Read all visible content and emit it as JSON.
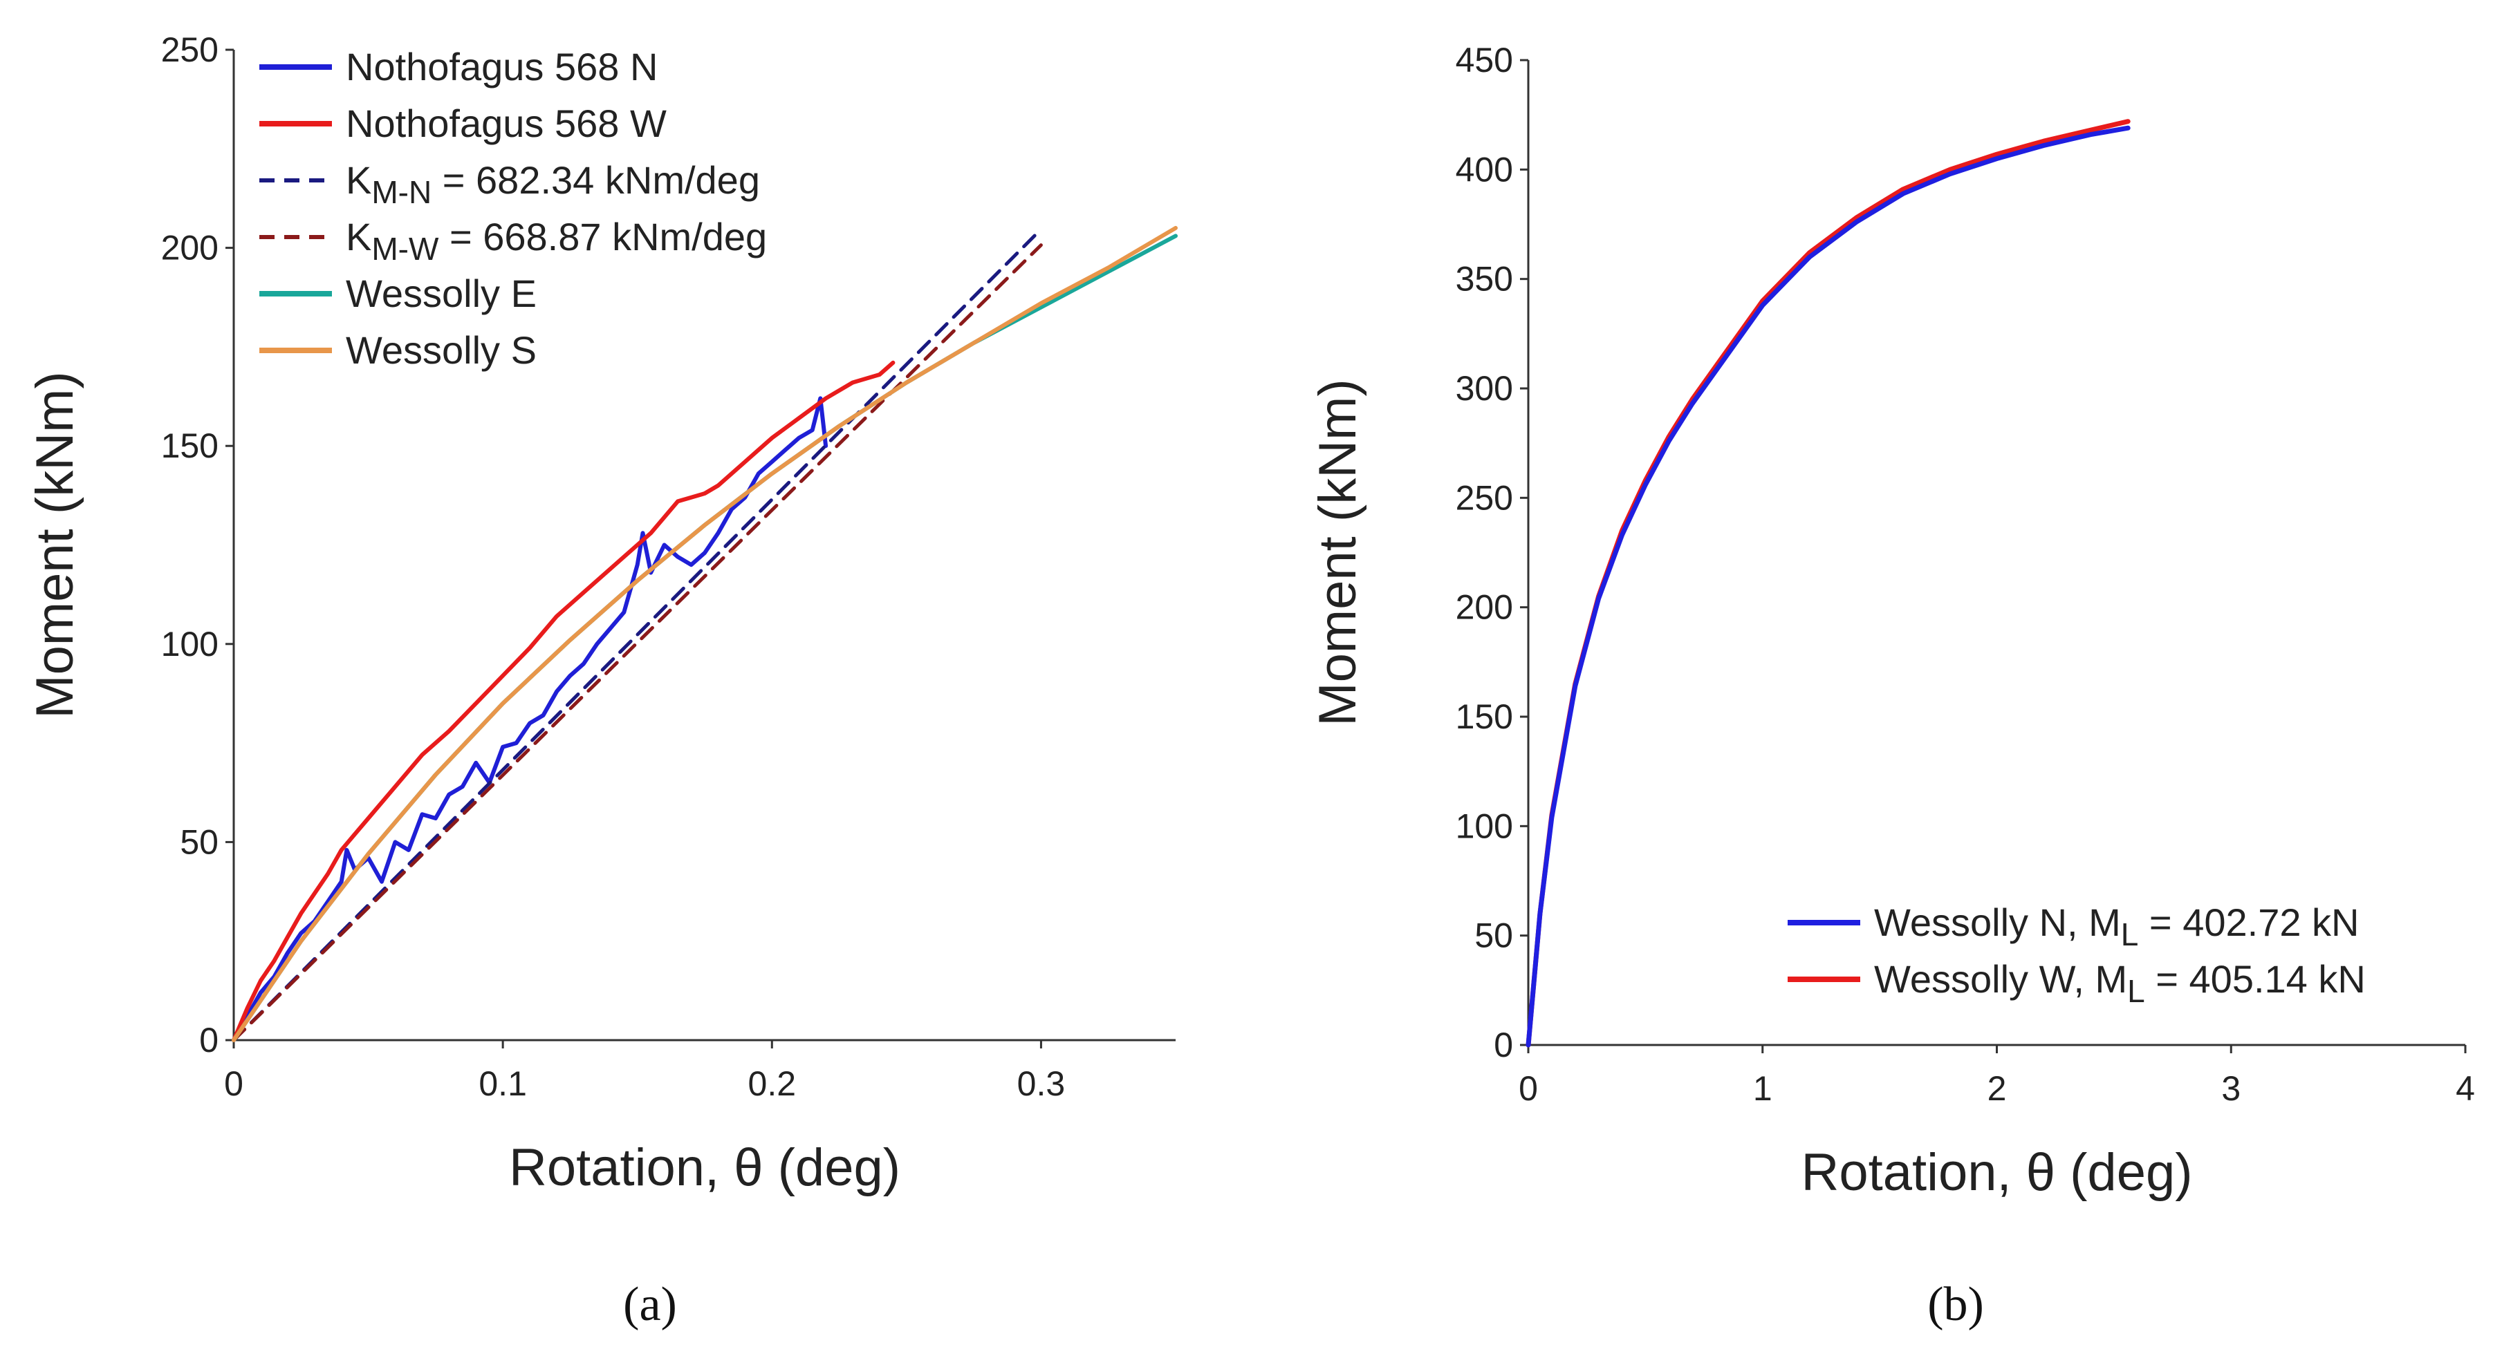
{
  "chart_data": [
    {
      "panel_label": "(a)",
      "type": "line",
      "xlabel": "Rotation, θ (deg)",
      "ylabel": "Moment (kNm)",
      "xlim": [
        0,
        0.35
      ],
      "ylim": [
        0,
        250
      ],
      "xticks": [
        0,
        0.1,
        0.2,
        0.3
      ],
      "xtick_labels": [
        "0",
        "0.1",
        "0.2",
        "0.3"
      ],
      "yticks": [
        0,
        50,
        100,
        150,
        200,
        250
      ],
      "ytick_labels": [
        "0",
        "50",
        "100",
        "150",
        "200",
        "250"
      ],
      "legend_position": "top-left",
      "series": [
        {
          "name": "Nothofagus 568 N",
          "legend_label": "Nothofagus 568 N",
          "color": "#1f1fd6",
          "style": "solid",
          "x": [
            0,
            0.005,
            0.01,
            0.015,
            0.02,
            0.025,
            0.03,
            0.035,
            0.04,
            0.042,
            0.045,
            0.05,
            0.055,
            0.06,
            0.065,
            0.07,
            0.075,
            0.08,
            0.085,
            0.09,
            0.095,
            0.1,
            0.105,
            0.11,
            0.115,
            0.12,
            0.125,
            0.13,
            0.135,
            0.14,
            0.145,
            0.15,
            0.152,
            0.155,
            0.16,
            0.165,
            0.17,
            0.175,
            0.18,
            0.185,
            0.19,
            0.195,
            0.2,
            0.205,
            0.21,
            0.215,
            0.218,
            0.22
          ],
          "y": [
            0,
            6,
            12,
            16,
            22,
            27,
            30,
            35,
            40,
            48,
            43,
            46,
            40,
            50,
            48,
            57,
            56,
            62,
            64,
            70,
            65,
            74,
            75,
            80,
            82,
            88,
            92,
            95,
            100,
            104,
            108,
            120,
            128,
            118,
            125,
            122,
            120,
            123,
            128,
            134,
            137,
            143,
            146,
            149,
            152,
            154,
            162,
            150
          ]
        },
        {
          "name": "Nothofagus 568 W",
          "legend_label": "Nothofagus 568 W",
          "color": "#e81c1c",
          "style": "solid",
          "x": [
            0,
            0.005,
            0.01,
            0.015,
            0.02,
            0.025,
            0.03,
            0.035,
            0.04,
            0.045,
            0.05,
            0.06,
            0.07,
            0.08,
            0.09,
            0.1,
            0.11,
            0.12,
            0.13,
            0.14,
            0.15,
            0.155,
            0.16,
            0.165,
            0.17,
            0.175,
            0.18,
            0.19,
            0.2,
            0.21,
            0.22,
            0.23,
            0.24,
            0.245
          ],
          "y": [
            0,
            8,
            15,
            20,
            26,
            32,
            37,
            42,
            48,
            52,
            56,
            64,
            72,
            78,
            85,
            92,
            99,
            107,
            113,
            119,
            125,
            128,
            132,
            136,
            137,
            138,
            140,
            146,
            152,
            157,
            162,
            166,
            168,
            171
          ]
        },
        {
          "name": "K_M-N",
          "legend_label": "K",
          "legend_subscript": "M-N",
          "legend_rest": " = 682.34 kNm/deg",
          "color": "#1a1a80",
          "style": "dashed",
          "x": [
            0,
            0.3
          ],
          "y": [
            0,
            204.7
          ]
        },
        {
          "name": "K_M-W",
          "legend_label": "K",
          "legend_subscript": "M-W",
          "legend_rest": " = 668.87 kNm/deg",
          "color": "#8b1a1a",
          "style": "dashed",
          "x": [
            0,
            0.3
          ],
          "y": [
            0,
            200.7
          ]
        },
        {
          "name": "Wessolly E",
          "legend_label": "Wessolly E",
          "color": "#1aa79a",
          "style": "solid",
          "x": [
            0,
            0.025,
            0.05,
            0.075,
            0.1,
            0.125,
            0.15,
            0.175,
            0.2,
            0.225,
            0.25,
            0.275,
            0.3,
            0.325,
            0.35
          ],
          "y": [
            0,
            25,
            47,
            67,
            85,
            101,
            116,
            130,
            143,
            155,
            166,
            176,
            185,
            194,
            203
          ]
        },
        {
          "name": "Wessolly S",
          "legend_label": "Wessolly S",
          "color": "#e8964a",
          "style": "solid",
          "x": [
            0,
            0.025,
            0.05,
            0.075,
            0.1,
            0.125,
            0.15,
            0.175,
            0.2,
            0.225,
            0.25,
            0.275,
            0.3,
            0.325,
            0.35
          ],
          "y": [
            0,
            25,
            47,
            67,
            85,
            101,
            116,
            130,
            143,
            155,
            166,
            176,
            186,
            195,
            205
          ]
        }
      ]
    },
    {
      "panel_label": "(b)",
      "type": "line",
      "xlabel": "Rotation, θ (deg)",
      "ylabel": "Moment (kNm)",
      "xlim": [
        0,
        4
      ],
      "ylim": [
        0,
        450
      ],
      "xticks": [
        0,
        1,
        2,
        3,
        4
      ],
      "xtick_labels": [
        "0",
        "1",
        "2",
        "3",
        "4"
      ],
      "yticks": [
        0,
        50,
        100,
        150,
        200,
        250,
        300,
        350,
        400,
        450
      ],
      "ytick_labels": [
        "0",
        "50",
        "100",
        "150",
        "200",
        "250",
        "300",
        "350",
        "400",
        "450"
      ],
      "legend_position": "bottom-right",
      "series": [
        {
          "name": "Wessolly W, M_L = 405.14 kN",
          "legend_label": "Wessolly W, M",
          "legend_subscript": "L",
          "legend_rest": " = 405.14 kN",
          "color": "#e81c1c",
          "style": "solid",
          "x": [
            0,
            0.05,
            0.1,
            0.2,
            0.3,
            0.4,
            0.5,
            0.6,
            0.7,
            0.8,
            1.0,
            1.2,
            1.4,
            1.6,
            1.8,
            2.0,
            2.2,
            2.4,
            2.56
          ],
          "y": [
            0,
            60,
            105,
            165,
            205,
            235,
            258,
            278,
            295,
            310,
            340,
            362,
            378,
            391,
            400,
            407,
            413,
            418,
            422
          ]
        },
        {
          "name": "Wessolly N, M_L = 402.72 kN",
          "legend_label": "Wessolly N, M",
          "legend_subscript": "L",
          "legend_rest": " = 402.72 kN",
          "color": "#1f1fe0",
          "style": "solid",
          "x": [
            0,
            0.05,
            0.1,
            0.2,
            0.3,
            0.4,
            0.5,
            0.6,
            0.7,
            0.8,
            1.0,
            1.2,
            1.4,
            1.6,
            1.8,
            2.0,
            2.2,
            2.4,
            2.56
          ],
          "y": [
            0,
            60,
            104,
            164,
            204,
            233,
            256,
            276,
            293,
            308,
            338,
            360,
            376,
            389,
            398,
            405,
            411,
            416,
            419
          ]
        }
      ],
      "legend_order": [
        "Wessolly N, M_L = 402.72 kN",
        "Wessolly W, M_L = 405.14 kN"
      ]
    }
  ]
}
